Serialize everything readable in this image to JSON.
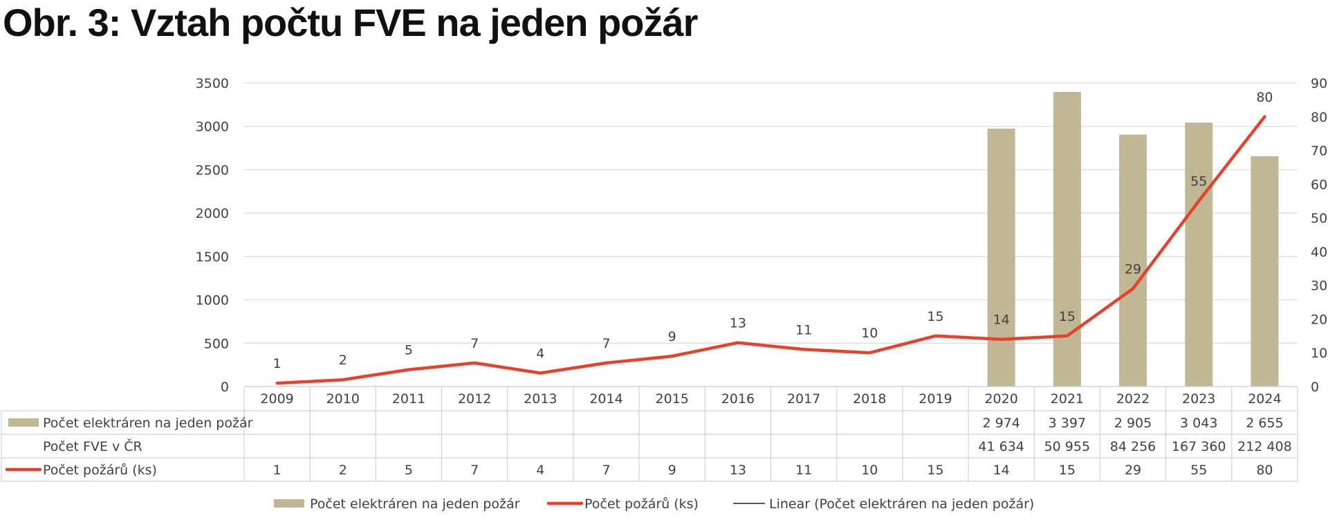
{
  "title": "Obr. 3: Vztah počtu FVE na jeden požár",
  "chart_data": {
    "type": "bar",
    "categories": [
      "2009",
      "2010",
      "2011",
      "2012",
      "2013",
      "2014",
      "2015",
      "2016",
      "2017",
      "2018",
      "2019",
      "2020",
      "2021",
      "2022",
      "2023",
      "2024"
    ],
    "ylim": [
      0,
      3500
    ],
    "yticks": [
      "0",
      "500",
      "1000",
      "1500",
      "2000",
      "2500",
      "3000",
      "3500"
    ],
    "y2lim": [
      0,
      90
    ],
    "y2ticks": [
      "0",
      "10",
      "20",
      "30",
      "40",
      "50",
      "60",
      "70",
      "80",
      "90"
    ],
    "grid": true,
    "legend_position": "bottom",
    "series": [
      {
        "name": "Počet elektráren na jeden požár",
        "type": "bar",
        "axis": "left",
        "color": "#c0b794",
        "values": [
          null,
          null,
          null,
          null,
          null,
          null,
          null,
          null,
          null,
          null,
          null,
          2974,
          3397,
          2905,
          3043,
          2655
        ],
        "table_values": [
          "",
          "",
          "",
          "",
          "",
          "",
          "",
          "",
          "",
          "",
          "",
          "2 974",
          "3 397",
          "2 905",
          "3 043",
          "2 655"
        ]
      },
      {
        "name": "Počet FVE v ČR",
        "type": "table-only",
        "values": [
          null,
          null,
          null,
          null,
          null,
          null,
          null,
          null,
          null,
          null,
          null,
          41634,
          50955,
          84256,
          167360,
          212408
        ],
        "table_values": [
          "",
          "",
          "",
          "",
          "",
          "",
          "",
          "",
          "",
          "",
          "",
          "41 634",
          "50 955",
          "84 256",
          "167 360",
          "212 408"
        ]
      },
      {
        "name": "Počet požárů (ks)",
        "type": "line",
        "axis": "right",
        "color": "#e8402a",
        "values": [
          1,
          2,
          5,
          7,
          4,
          7,
          9,
          13,
          11,
          10,
          15,
          14,
          15,
          29,
          55,
          80
        ],
        "table_values": [
          "1",
          "2",
          "5",
          "7",
          "4",
          "7",
          "9",
          "13",
          "11",
          "10",
          "15",
          "14",
          "15",
          "29",
          "55",
          "80"
        ]
      }
    ],
    "trendline": {
      "name": "Linear (Počet elektráren na jeden požár)",
      "color": "#222222"
    },
    "legend": [
      {
        "label": "Počet elektráren na jeden požár",
        "kind": "bar",
        "color": "#c0b794"
      },
      {
        "label": "Počet požárů (ks)",
        "kind": "line",
        "color": "#e8402a"
      },
      {
        "label": "Linear (Počet elektráren na jeden požár)",
        "kind": "thin-line",
        "color": "#222222"
      }
    ]
  }
}
